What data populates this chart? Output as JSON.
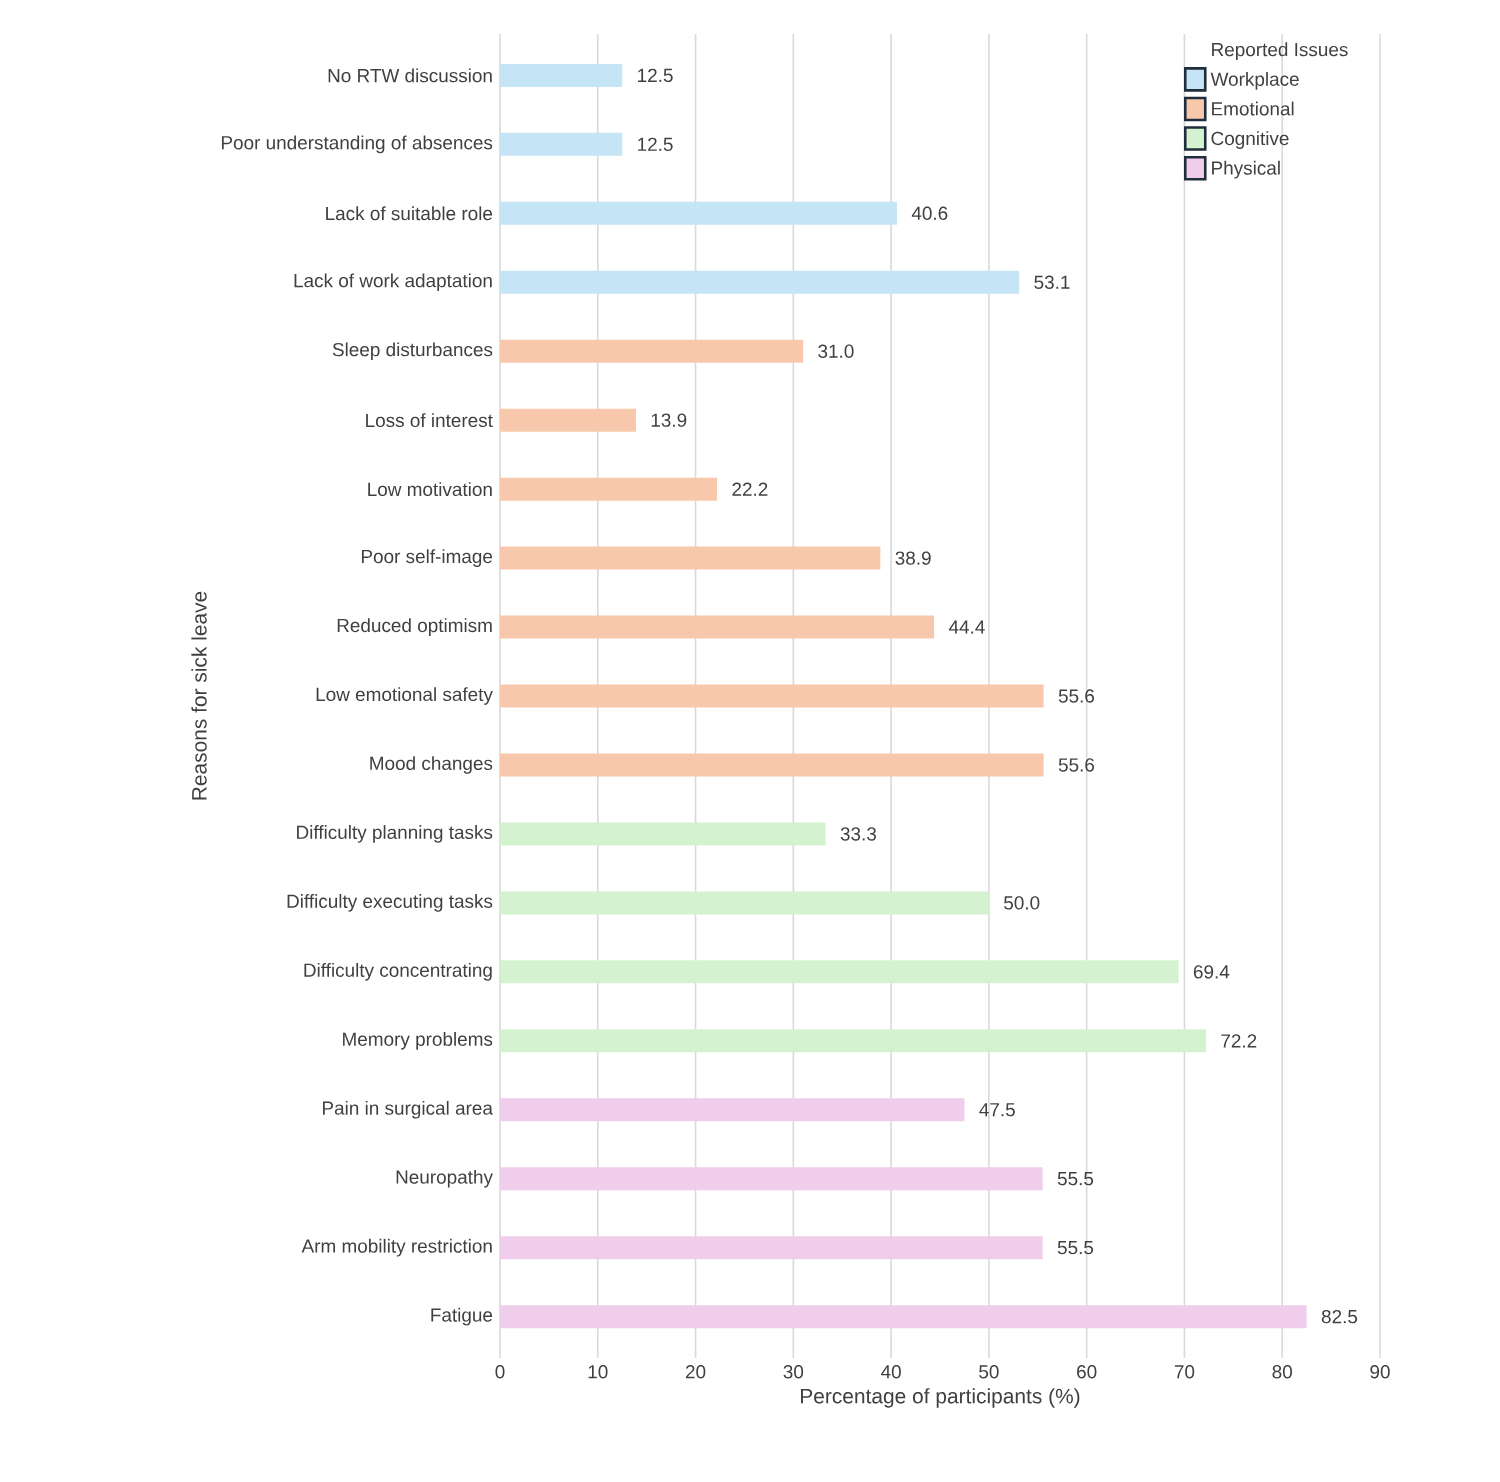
{
  "chart_data": {
    "type": "bar",
    "orientation": "horizontal",
    "xlabel": "Percentage of participants (%)",
    "ylabel": "Reasons for sick leave",
    "legend_title": "Reported Issues",
    "categories": [
      "No RTW discussion",
      "Poor understanding of absences",
      "Lack of suitable role",
      "Lack of work adaptation",
      "Sleep disturbances",
      "Loss of interest",
      "Low motivation",
      "Poor self-image",
      "Reduced optimism",
      "Low emotional safety",
      "Mood changes",
      "Difficulty planning tasks",
      "Difficulty executing tasks",
      "Difficulty concentrating",
      "Memory problems",
      "Pain in surgical area",
      "Neuropathy",
      "Arm mobility restriction",
      "Fatigue"
    ],
    "series": [
      {
        "name": "Workplace",
        "color": "#c5e4f5",
        "values": [
          12.5,
          12.5,
          40.6,
          53.1,
          null,
          null,
          null,
          null,
          null,
          null,
          null,
          null,
          null,
          null,
          null,
          null,
          null,
          null,
          null
        ],
        "value_labels": [
          "12.5",
          "12.5",
          "40.6",
          "53.1",
          null,
          null,
          null,
          null,
          null,
          null,
          null,
          null,
          null,
          null,
          null,
          null,
          null,
          null,
          null
        ]
      },
      {
        "name": "Emotional",
        "color": "#f7c8ab",
        "values": [
          null,
          null,
          null,
          null,
          31.0,
          13.9,
          22.2,
          38.9,
          44.4,
          55.6,
          55.6,
          null,
          null,
          null,
          null,
          null,
          null,
          null,
          null
        ],
        "value_labels": [
          null,
          null,
          null,
          null,
          "31.0",
          "13.9",
          "22.2",
          "38.9",
          "44.4",
          "55.6",
          "55.6",
          null,
          null,
          null,
          null,
          null,
          null,
          null,
          null
        ]
      },
      {
        "name": "Cognitive",
        "color": "#d5f2d0",
        "values": [
          null,
          null,
          null,
          null,
          null,
          null,
          null,
          null,
          null,
          null,
          null,
          33.3,
          50.0,
          69.4,
          72.2,
          null,
          null,
          null,
          null
        ],
        "value_labels": [
          null,
          null,
          null,
          null,
          null,
          null,
          null,
          null,
          null,
          null,
          null,
          "33.3",
          "50.0",
          "69.4",
          "72.2",
          null,
          null,
          null,
          null
        ]
      },
      {
        "name": "Physical",
        "color": "#f0cdea",
        "values": [
          null,
          null,
          null,
          null,
          null,
          null,
          null,
          null,
          null,
          null,
          null,
          null,
          null,
          null,
          null,
          47.5,
          55.5,
          55.5,
          82.5
        ],
        "value_labels": [
          null,
          null,
          null,
          null,
          null,
          null,
          null,
          null,
          null,
          null,
          null,
          null,
          null,
          null,
          null,
          "47.5",
          "55.5",
          "55.5",
          "82.5"
        ]
      }
    ],
    "xlim": [
      0,
      90
    ],
    "xticks": [
      0,
      10,
      20,
      30,
      40,
      50,
      60,
      70,
      80,
      90
    ],
    "grid": "x",
    "legend": "top right"
  }
}
